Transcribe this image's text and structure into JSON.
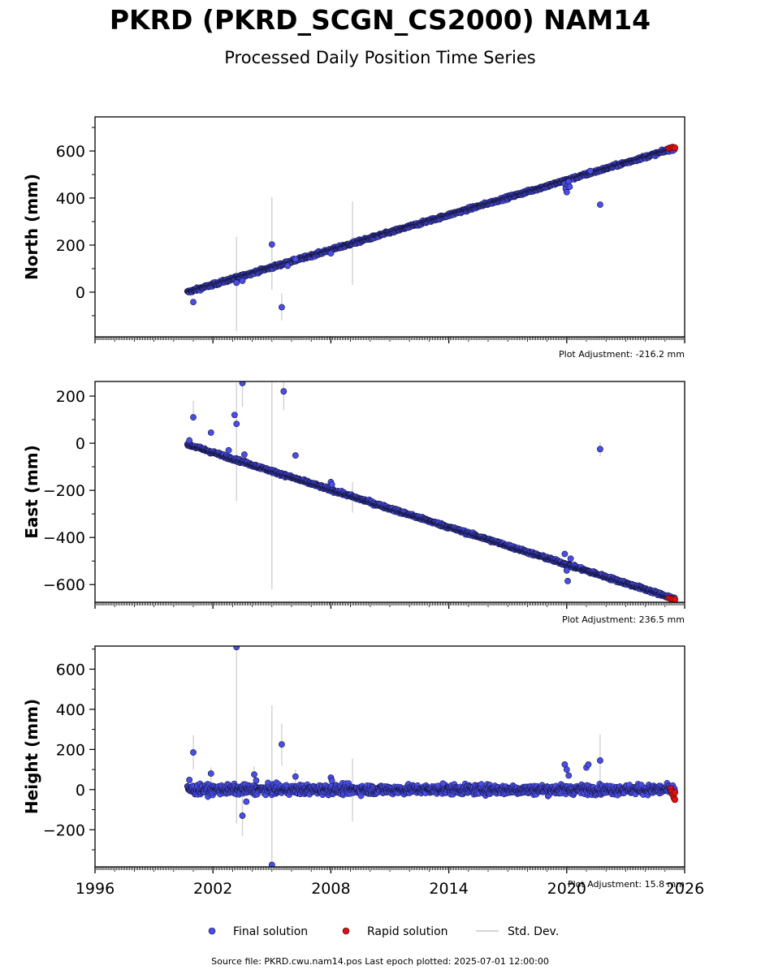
{
  "chart_data": {
    "type": "scatter",
    "title": "PKRD (PKRD_SCGN_CS2000) NAM14",
    "subtitle": "Processed Daily Position Time Series",
    "legend": {
      "placement": "bottom-center",
      "entries": [
        "Final solution",
        "Rapid solution",
        "Std. Dev."
      ]
    },
    "colors": {
      "final": "#4a4ee8",
      "rapid": "#e01010",
      "stddev": "#d4d4d4",
      "edge": "#111133"
    },
    "source_text": "Source file: PKRD.cwu.nam14.pos  Last epoch plotted: 2025-07-01 12:00:00",
    "xlim": [
      1996,
      2026
    ],
    "x_ticks": [
      1996,
      2002,
      2008,
      2014,
      2020,
      2026
    ],
    "x_tick_labels": [
      "1996",
      "2002",
      "2008",
      "2014",
      "2020",
      "2026"
    ],
    "panels": [
      {
        "ylabel": "North (mm)",
        "adjustment": "Plot Adjustment: -216.2 mm",
        "ylim": [
          -190,
          745
        ],
        "yticks": [
          0,
          200,
          400,
          600
        ],
        "ytick_labels": [
          "0",
          "200",
          "400",
          "600"
        ],
        "trend": {
          "x_start": 2000.7,
          "x_end": 2025.5,
          "y_start": 0,
          "y_end": 612,
          "scatter": 5
        },
        "outliers": [
          [
            2001.0,
            -42
          ],
          [
            2003.2,
            40
          ],
          [
            2003.5,
            48
          ],
          [
            2005.0,
            203
          ],
          [
            2005.5,
            -64
          ],
          [
            2005.8,
            112
          ],
          [
            2006.2,
            140
          ],
          [
            2008.0,
            165
          ],
          [
            2019.9,
            460
          ],
          [
            2019.95,
            440
          ],
          [
            2020.0,
            425
          ],
          [
            2020.05,
            455
          ],
          [
            2020.1,
            470
          ],
          [
            2020.15,
            448
          ],
          [
            2021.2,
            515
          ],
          [
            2021.7,
            372
          ]
        ],
        "error_bars": [
          [
            2003.2,
            -165,
            235
          ],
          [
            2005.0,
            10,
            405
          ],
          [
            2005.5,
            -120,
            -5
          ],
          [
            2009.1,
            30,
            385
          ]
        ],
        "rapid": [
          [
            2025.2,
            612
          ],
          [
            2025.3,
            614
          ],
          [
            2025.4,
            616
          ],
          [
            2025.5,
            614
          ]
        ]
      },
      {
        "ylabel": "East (mm)",
        "adjustment": "Plot Adjustment: 236.5 mm",
        "ylim": [
          -675,
          262
        ],
        "yticks": [
          -600,
          -400,
          -200,
          0,
          200
        ],
        "ytick_labels": [
          "−600",
          "−400",
          "−200",
          "0",
          "200"
        ],
        "trend": {
          "x_start": 2000.7,
          "x_end": 2025.5,
          "y_start": -5,
          "y_end": -660,
          "scatter": 5
        },
        "outliers": [
          [
            2000.8,
            12
          ],
          [
            2001.0,
            110
          ],
          [
            2001.9,
            45
          ],
          [
            2002.8,
            -30
          ],
          [
            2003.1,
            120
          ],
          [
            2003.2,
            82
          ],
          [
            2003.5,
            255
          ],
          [
            2003.6,
            -48
          ],
          [
            2005.6,
            220
          ],
          [
            2006.2,
            -52
          ],
          [
            2008.0,
            -165
          ],
          [
            2008.05,
            -175
          ],
          [
            2019.9,
            -470
          ],
          [
            2020.0,
            -540
          ],
          [
            2020.05,
            -585
          ],
          [
            2020.2,
            -490
          ],
          [
            2021.7,
            -25
          ]
        ],
        "error_bars": [
          [
            2001.0,
            95,
            180
          ],
          [
            2003.2,
            -245,
            255
          ],
          [
            2003.5,
            155,
            265
          ],
          [
            2005.0,
            -620,
            262
          ],
          [
            2005.6,
            140,
            262
          ],
          [
            2009.1,
            -295,
            -165
          ],
          [
            2021.7,
            -55,
            5
          ]
        ],
        "rapid": [
          [
            2025.2,
            -657
          ],
          [
            2025.3,
            -660
          ],
          [
            2025.4,
            -662
          ],
          [
            2025.5,
            -664
          ]
        ]
      },
      {
        "ylabel": "Height (mm)",
        "adjustment": "Plot Adjustment: 15.8 mm",
        "ylim": [
          -385,
          715
        ],
        "yticks": [
          -200,
          0,
          200,
          400,
          600
        ],
        "ytick_labels": [
          "−200",
          "0",
          "200",
          "400",
          "600"
        ],
        "trend": {
          "x_start": 2000.7,
          "x_end": 2025.5,
          "y_start": 0,
          "y_end": 0,
          "scatter": 17
        },
        "outliers": [
          [
            2000.8,
            48
          ],
          [
            2001.0,
            185
          ],
          [
            2001.9,
            80
          ],
          [
            2003.2,
            710
          ],
          [
            2003.5,
            -130
          ],
          [
            2003.7,
            -60
          ],
          [
            2004.1,
            75
          ],
          [
            2004.2,
            45
          ],
          [
            2005.0,
            -375
          ],
          [
            2005.5,
            225
          ],
          [
            2006.2,
            65
          ],
          [
            2008.0,
            60
          ],
          [
            2008.05,
            45
          ],
          [
            2013.7,
            30
          ],
          [
            2019.9,
            125
          ],
          [
            2020.0,
            100
          ],
          [
            2020.1,
            70
          ],
          [
            2021.0,
            110
          ],
          [
            2021.1,
            125
          ],
          [
            2021.7,
            145
          ]
        ],
        "error_bars": [
          [
            2001.0,
            100,
            270
          ],
          [
            2001.9,
            -40,
            110
          ],
          [
            2003.2,
            -170,
            715
          ],
          [
            2003.5,
            -230,
            -35
          ],
          [
            2004.1,
            -20,
            115
          ],
          [
            2005.0,
            -385,
            420
          ],
          [
            2005.5,
            120,
            330
          ],
          [
            2006.2,
            -20,
            100
          ],
          [
            2009.1,
            -160,
            155
          ],
          [
            2021.7,
            10,
            275
          ]
        ],
        "rapid": [
          [
            2025.3,
            5
          ],
          [
            2025.35,
            -10
          ],
          [
            2025.4,
            -25
          ],
          [
            2025.45,
            -40
          ],
          [
            2025.5,
            -50
          ],
          [
            2025.5,
            -15
          ]
        ]
      }
    ]
  }
}
